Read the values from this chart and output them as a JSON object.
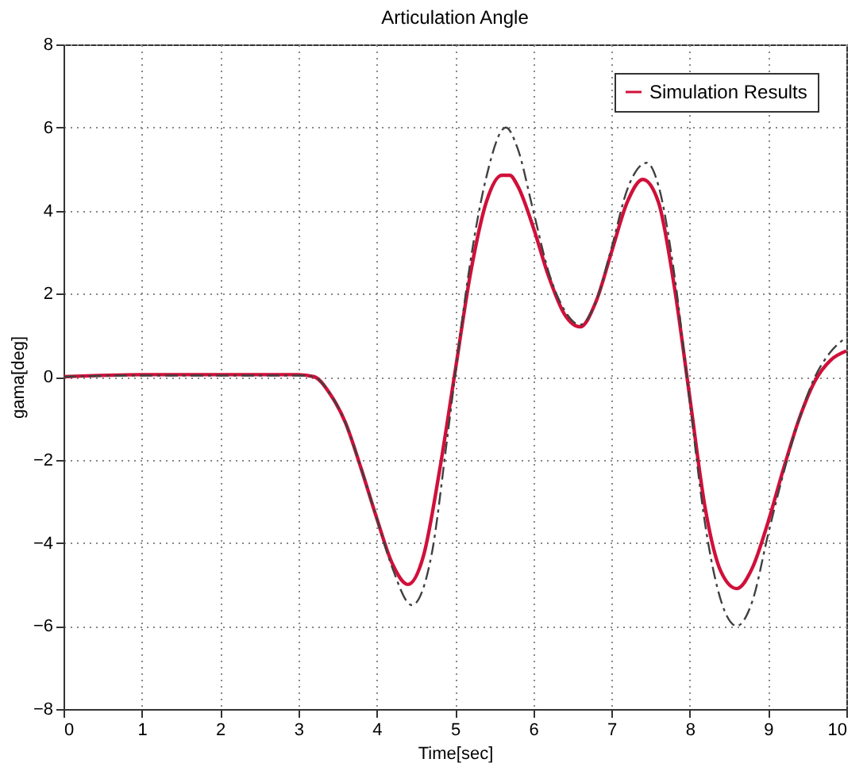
{
  "chart_data": {
    "type": "line",
    "title": "Articulation Angle",
    "xlabel": "Time[sec]",
    "ylabel": "gama[deg]",
    "xlim": [
      0,
      10
    ],
    "ylim": [
      -8,
      8
    ],
    "xticks": [
      0,
      1,
      2,
      3,
      4,
      5,
      6,
      7,
      8,
      9,
      10
    ],
    "yticks": [
      -8,
      -6,
      -4,
      -2,
      0,
      2,
      4,
      6,
      8
    ],
    "grid": true,
    "legend": "top right",
    "series": [
      {
        "name": "Simulation Results",
        "color": "#d0103a",
        "line_style": "solid",
        "x": [
          0,
          1,
          2,
          3,
          3.2,
          3.4,
          3.6,
          3.8,
          4.0,
          4.2,
          4.4,
          4.6,
          4.8,
          5.0,
          5.2,
          5.4,
          5.6,
          5.7,
          5.8,
          6.0,
          6.2,
          6.4,
          6.6,
          6.8,
          7.0,
          7.2,
          7.4,
          7.6,
          7.8,
          8.0,
          8.2,
          8.4,
          8.6,
          8.8,
          9.0,
          9.2,
          9.4,
          9.6,
          9.8,
          10
        ],
        "values": [
          0,
          0.05,
          0.05,
          0.05,
          0,
          -0.4,
          -1.1,
          -2.2,
          -3.4,
          -4.5,
          -5.0,
          -4.3,
          -2.3,
          0.1,
          2.5,
          4.2,
          4.85,
          4.85,
          4.6,
          3.6,
          2.4,
          1.5,
          1.2,
          1.8,
          3.0,
          4.2,
          4.75,
          4.2,
          2.2,
          -0.5,
          -3.2,
          -4.7,
          -5.1,
          -4.6,
          -3.5,
          -2.2,
          -1.0,
          -0.1,
          0.4,
          0.62
        ]
      },
      {
        "color": "#404040",
        "line_style": "dashed",
        "x": [
          0,
          1,
          2,
          3,
          3.2,
          3.4,
          3.6,
          3.8,
          4.0,
          4.2,
          4.45,
          4.7,
          4.9,
          5.0,
          5.2,
          5.4,
          5.65,
          5.8,
          6.0,
          6.2,
          6.4,
          6.6,
          6.8,
          7.0,
          7.2,
          7.45,
          7.6,
          7.8,
          8.0,
          8.2,
          8.4,
          8.6,
          8.8,
          9.0,
          9.2,
          9.4,
          9.6,
          9.8,
          10
        ],
        "values": [
          0,
          0.03,
          0.03,
          0.03,
          0,
          -0.4,
          -1.1,
          -2.2,
          -3.4,
          -4.6,
          -5.5,
          -4.3,
          -1.5,
          0,
          2.8,
          4.8,
          6.0,
          5.5,
          4.0,
          2.5,
          1.6,
          1.25,
          1.8,
          3.1,
          4.5,
          5.15,
          4.6,
          2.5,
          -0.6,
          -3.6,
          -5.4,
          -6.0,
          -5.4,
          -3.8,
          -2.3,
          -1.0,
          0,
          0.6,
          0.95
        ]
      }
    ]
  }
}
